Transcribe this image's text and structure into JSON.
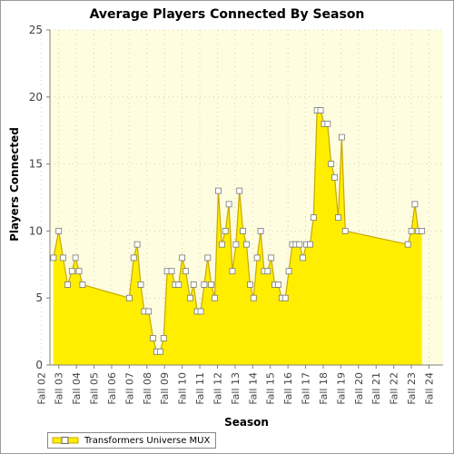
{
  "chart_data": {
    "type": "area",
    "title": "Average Players Connected By Season",
    "xlabel": "Season",
    "ylabel": "Players Connected",
    "ylim": [
      0,
      25
    ],
    "yticks": [
      0,
      5,
      10,
      15,
      20,
      25
    ],
    "grid": true,
    "legend_position": "bottom-left",
    "x_tick_labels": [
      "Fall 02",
      "Fall 03",
      "Fall 04",
      "Fall 05",
      "Fall 06",
      "Fall 07",
      "Fall 08",
      "Fall 09",
      "Fall 10",
      "Fall 11",
      "Fall 12",
      "Fall 13",
      "Fall 14",
      "Fall 15",
      "Fall 16",
      "Fall 17",
      "Fall 18",
      "Fall 19",
      "Fall 20",
      "Fall 21",
      "Fall 22",
      "Fall 23",
      "Fall 24"
    ],
    "x_range": [
      2002.5,
      2024.8
    ],
    "series": [
      {
        "name": "Transformers Universe MUX",
        "color": "#ffee00",
        "edge_color": "#c8a800",
        "points": [
          [
            2002.7,
            8
          ],
          [
            2003.0,
            10
          ],
          [
            2003.25,
            8
          ],
          [
            2003.5,
            6
          ],
          [
            2003.75,
            7
          ],
          [
            2003.95,
            8
          ],
          [
            2004.15,
            7
          ],
          [
            2004.35,
            6
          ],
          [
            2007.0,
            5
          ],
          [
            2007.25,
            8
          ],
          [
            2007.45,
            9
          ],
          [
            2007.65,
            6
          ],
          [
            2007.85,
            4
          ],
          [
            2008.1,
            4
          ],
          [
            2008.35,
            2
          ],
          [
            2008.55,
            1
          ],
          [
            2008.75,
            1
          ],
          [
            2008.95,
            2
          ],
          [
            2009.15,
            7
          ],
          [
            2009.4,
            7
          ],
          [
            2009.6,
            6
          ],
          [
            2009.8,
            6
          ],
          [
            2010.0,
            8
          ],
          [
            2010.2,
            7
          ],
          [
            2010.45,
            5
          ],
          [
            2010.65,
            6
          ],
          [
            2010.85,
            4
          ],
          [
            2011.05,
            4
          ],
          [
            2011.25,
            6
          ],
          [
            2011.45,
            8
          ],
          [
            2011.65,
            6
          ],
          [
            2011.85,
            5
          ],
          [
            2012.05,
            13
          ],
          [
            2012.25,
            9
          ],
          [
            2012.45,
            10
          ],
          [
            2012.65,
            12
          ],
          [
            2012.85,
            7
          ],
          [
            2013.05,
            9
          ],
          [
            2013.25,
            13
          ],
          [
            2013.45,
            10
          ],
          [
            2013.65,
            9
          ],
          [
            2013.85,
            6
          ],
          [
            2014.05,
            5
          ],
          [
            2014.25,
            8
          ],
          [
            2014.45,
            10
          ],
          [
            2014.65,
            7
          ],
          [
            2014.85,
            7
          ],
          [
            2015.05,
            8
          ],
          [
            2015.25,
            6
          ],
          [
            2015.45,
            6
          ],
          [
            2015.65,
            5
          ],
          [
            2015.85,
            5
          ],
          [
            2016.05,
            7
          ],
          [
            2016.25,
            9
          ],
          [
            2016.45,
            9
          ],
          [
            2016.65,
            9
          ],
          [
            2016.85,
            8
          ],
          [
            2017.05,
            9
          ],
          [
            2017.25,
            9
          ],
          [
            2017.45,
            11
          ],
          [
            2017.65,
            19
          ],
          [
            2017.85,
            19
          ],
          [
            2018.05,
            18
          ],
          [
            2018.25,
            18
          ],
          [
            2018.45,
            15
          ],
          [
            2018.65,
            14
          ],
          [
            2018.85,
            11
          ],
          [
            2019.05,
            17
          ],
          [
            2019.25,
            10
          ],
          [
            2022.8,
            9
          ],
          [
            2023.0,
            10
          ],
          [
            2023.2,
            12
          ],
          [
            2023.4,
            10
          ],
          [
            2023.6,
            10
          ]
        ]
      }
    ]
  }
}
